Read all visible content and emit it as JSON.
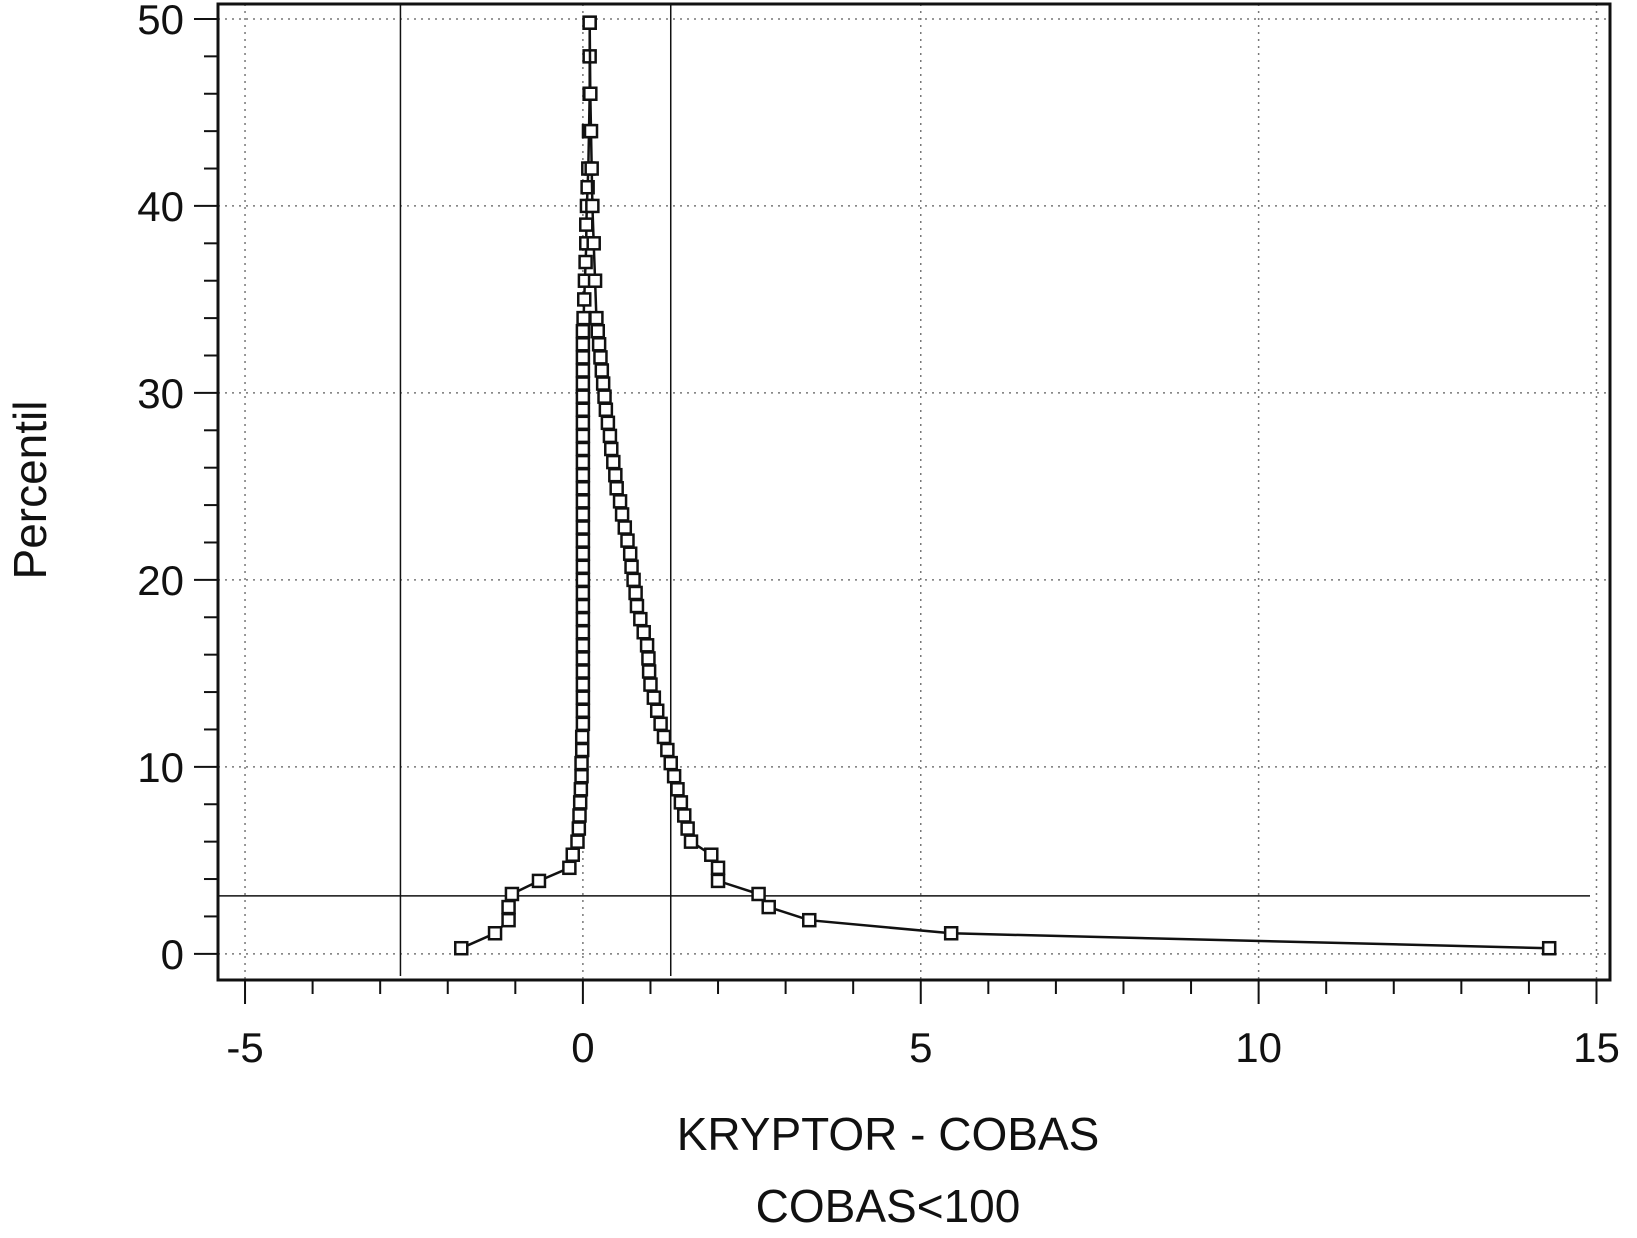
{
  "chart_data": {
    "type": "line",
    "title": "",
    "xlabel": "KRYPTOR - COBAS",
    "xlabel_line2": "COBAS<100",
    "ylabel": "Percentil",
    "xlim": [
      -5.4,
      15.2
    ],
    "ylim": [
      -1.4,
      50.8
    ],
    "x_ticks": [
      -5,
      0,
      5,
      10,
      15
    ],
    "x_tick_labels": [
      "-5",
      "0",
      "5",
      "10",
      "15"
    ],
    "y_ticks": [
      0,
      10,
      20,
      30,
      40,
      50
    ],
    "y_tick_labels": [
      "0",
      "10",
      "20",
      "30",
      "40",
      "50"
    ],
    "x_minor_step": 1,
    "y_minor_step": 2,
    "grid": true,
    "marker": "open-square",
    "reference_lines": {
      "vertical": [
        -2.7,
        1.3
      ],
      "horizontal": [
        3.1
      ]
    },
    "series": [
      {
        "x": [
          -1.8,
          -1.3,
          -1.1,
          -1.1,
          -1.05,
          -0.65,
          -0.2,
          -0.15,
          -0.08,
          -0.06,
          -0.05,
          -0.04,
          -0.03,
          -0.02,
          -0.02,
          -0.01,
          -0.01,
          0.0,
          0.0,
          0.0,
          0.0,
          0.0,
          0.0,
          0.0,
          0.0,
          0.0,
          0.0,
          0.0,
          0.0,
          0.0,
          0.0,
          0.0,
          0.0,
          0.0,
          0.0,
          0.0,
          0.0,
          0.0,
          0.0,
          0.0,
          0.0,
          0.0,
          0.0,
          0.0,
          0.0,
          0.0,
          0.0,
          0.0,
          0.01,
          0.02,
          0.03,
          0.04,
          0.05,
          0.05,
          0.06,
          0.07,
          0.08,
          0.09,
          0.1,
          0.1,
          0.1
        ],
        "y": [
          0.3,
          1.1,
          1.8,
          2.5,
          3.2,
          3.9,
          4.6,
          5.3,
          6.0,
          6.7,
          7.4,
          8.1,
          8.8,
          9.5,
          10.2,
          10.9,
          11.6,
          12.3,
          13.0,
          13.7,
          14.4,
          15.1,
          15.8,
          16.5,
          17.2,
          17.9,
          18.6,
          19.3,
          20.0,
          20.7,
          21.4,
          22.1,
          22.8,
          23.5,
          24.2,
          24.9,
          25.6,
          26.3,
          27.0,
          27.7,
          28.4,
          29.1,
          29.8,
          30.5,
          31.2,
          31.9,
          32.6,
          33.3,
          34.0,
          35.0,
          36.0,
          37.0,
          38.0,
          39.0,
          40.0,
          41.0,
          42.0,
          44.0,
          46.0,
          48.0,
          49.8
        ]
      },
      {
        "x": [
          14.3,
          5.45,
          3.35,
          2.75,
          2.6,
          2.0,
          2.0,
          1.9,
          1.6,
          1.55,
          1.5,
          1.45,
          1.4,
          1.35,
          1.3,
          1.25,
          1.2,
          1.15,
          1.1,
          1.05,
          1.0,
          0.98,
          0.97,
          0.95,
          0.9,
          0.85,
          0.8,
          0.78,
          0.75,
          0.72,
          0.7,
          0.66,
          0.62,
          0.58,
          0.55,
          0.5,
          0.48,
          0.45,
          0.42,
          0.4,
          0.37,
          0.34,
          0.32,
          0.3,
          0.28,
          0.26,
          0.24,
          0.22,
          0.2,
          0.18,
          0.16,
          0.14,
          0.13,
          0.12,
          0.11,
          0.1
        ],
        "y": [
          0.3,
          1.1,
          1.8,
          2.5,
          3.2,
          3.9,
          4.6,
          5.3,
          6.0,
          6.7,
          7.4,
          8.1,
          8.8,
          9.5,
          10.2,
          10.9,
          11.6,
          12.3,
          13.0,
          13.7,
          14.4,
          15.1,
          15.8,
          16.5,
          17.2,
          17.9,
          18.6,
          19.3,
          20.0,
          20.7,
          21.4,
          22.1,
          22.8,
          23.5,
          24.2,
          24.9,
          25.6,
          26.3,
          27.0,
          27.7,
          28.4,
          29.1,
          29.8,
          30.5,
          31.2,
          31.9,
          32.6,
          33.3,
          34.0,
          36.0,
          38.0,
          40.0,
          42.0,
          44.0,
          46.0,
          49.8
        ]
      }
    ]
  }
}
